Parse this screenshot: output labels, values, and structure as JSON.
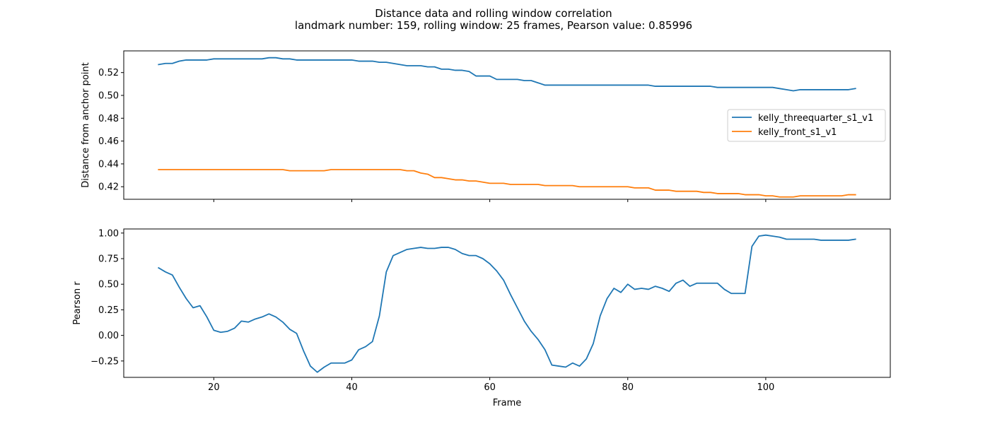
{
  "figure": {
    "title_line1": "Distance data and rolling window correlation",
    "title_line2": "landmark number: 159, rolling window: 25 frames, Pearson value: 0.85996"
  },
  "colors": {
    "series1": "#1f77b4",
    "series2": "#ff7f0e"
  },
  "chart_data": [
    {
      "type": "line",
      "title": "",
      "xlabel": "",
      "ylabel": "Distance from anchor point",
      "xlim": [
        6.95,
        118.05
      ],
      "ylim": [
        0.409,
        0.539
      ],
      "xticks": [
        20,
        40,
        60,
        80,
        100
      ],
      "show_xtick_labels": false,
      "yticks": [
        0.42,
        0.44,
        0.46,
        0.48,
        0.5,
        0.52
      ],
      "ytick_labels": [
        "0.42",
        "0.44",
        "0.46",
        "0.48",
        "0.50",
        "0.52"
      ],
      "grid": false,
      "legend": "center-right",
      "x": [
        12,
        13,
        14,
        15,
        16,
        17,
        18,
        19,
        20,
        21,
        22,
        23,
        24,
        25,
        26,
        27,
        28,
        29,
        30,
        31,
        32,
        33,
        34,
        35,
        36,
        37,
        38,
        39,
        40,
        41,
        42,
        43,
        44,
        45,
        46,
        47,
        48,
        49,
        50,
        51,
        52,
        53,
        54,
        55,
        56,
        57,
        58,
        59,
        60,
        61,
        62,
        63,
        64,
        65,
        66,
        67,
        68,
        69,
        70,
        71,
        72,
        73,
        74,
        75,
        76,
        77,
        78,
        79,
        80,
        81,
        82,
        83,
        84,
        85,
        86,
        87,
        88,
        89,
        90,
        91,
        92,
        93,
        94,
        95,
        96,
        97,
        98,
        99,
        100,
        101,
        102,
        103,
        104,
        105,
        106,
        107,
        108,
        109,
        110,
        111,
        112,
        113
      ],
      "series": [
        {
          "name": "kelly_threequarter_s1_v1",
          "values": [
            0.527,
            0.528,
            0.528,
            0.53,
            0.531,
            0.531,
            0.531,
            0.531,
            0.532,
            0.532,
            0.532,
            0.532,
            0.532,
            0.532,
            0.532,
            0.532,
            0.533,
            0.533,
            0.532,
            0.532,
            0.531,
            0.531,
            0.531,
            0.531,
            0.531,
            0.531,
            0.531,
            0.531,
            0.531,
            0.53,
            0.53,
            0.53,
            0.529,
            0.529,
            0.528,
            0.527,
            0.526,
            0.526,
            0.526,
            0.525,
            0.525,
            0.523,
            0.523,
            0.522,
            0.522,
            0.521,
            0.517,
            0.517,
            0.517,
            0.514,
            0.514,
            0.514,
            0.514,
            0.513,
            0.513,
            0.511,
            0.509,
            0.509,
            0.509,
            0.509,
            0.509,
            0.509,
            0.509,
            0.509,
            0.509,
            0.509,
            0.509,
            0.509,
            0.509,
            0.509,
            0.509,
            0.509,
            0.508,
            0.508,
            0.508,
            0.508,
            0.508,
            0.508,
            0.508,
            0.508,
            0.508,
            0.507,
            0.507,
            0.507,
            0.507,
            0.507,
            0.507,
            0.507,
            0.507,
            0.507,
            0.506,
            0.505,
            0.504,
            0.505,
            0.505,
            0.505,
            0.505,
            0.505,
            0.505,
            0.505,
            0.505,
            0.506
          ]
        },
        {
          "name": "kelly_front_s1_v1",
          "values": [
            0.435,
            0.435,
            0.435,
            0.435,
            0.435,
            0.435,
            0.435,
            0.435,
            0.435,
            0.435,
            0.435,
            0.435,
            0.435,
            0.435,
            0.435,
            0.435,
            0.435,
            0.435,
            0.435,
            0.434,
            0.434,
            0.434,
            0.434,
            0.434,
            0.434,
            0.435,
            0.435,
            0.435,
            0.435,
            0.435,
            0.435,
            0.435,
            0.435,
            0.435,
            0.435,
            0.435,
            0.434,
            0.434,
            0.432,
            0.431,
            0.428,
            0.428,
            0.427,
            0.426,
            0.426,
            0.425,
            0.425,
            0.424,
            0.423,
            0.423,
            0.423,
            0.422,
            0.422,
            0.422,
            0.422,
            0.422,
            0.421,
            0.421,
            0.421,
            0.421,
            0.421,
            0.42,
            0.42,
            0.42,
            0.42,
            0.42,
            0.42,
            0.42,
            0.42,
            0.419,
            0.419,
            0.419,
            0.417,
            0.417,
            0.417,
            0.416,
            0.416,
            0.416,
            0.416,
            0.415,
            0.415,
            0.414,
            0.414,
            0.414,
            0.414,
            0.413,
            0.413,
            0.413,
            0.412,
            0.412,
            0.411,
            0.411,
            0.411,
            0.412,
            0.412,
            0.412,
            0.412,
            0.412,
            0.412,
            0.412,
            0.413,
            0.413
          ]
        }
      ]
    },
    {
      "type": "line",
      "title": "",
      "xlabel": "Frame",
      "ylabel": "Pearson r",
      "xlim": [
        6.95,
        118.05
      ],
      "ylim": [
        -0.41,
        1.04
      ],
      "xticks": [
        20,
        40,
        60,
        80,
        100
      ],
      "xtick_labels": [
        "20",
        "40",
        "60",
        "80",
        "100"
      ],
      "show_xtick_labels": true,
      "yticks": [
        -0.25,
        0.0,
        0.25,
        0.5,
        0.75,
        1.0
      ],
      "ytick_labels": [
        "−0.25",
        "0.00",
        "0.25",
        "0.50",
        "0.75",
        "1.00"
      ],
      "grid": false,
      "x": [
        12,
        13,
        14,
        15,
        16,
        17,
        18,
        19,
        20,
        21,
        22,
        23,
        24,
        25,
        26,
        27,
        28,
        29,
        30,
        31,
        32,
        33,
        34,
        35,
        36,
        37,
        38,
        39,
        40,
        41,
        42,
        43,
        44,
        45,
        46,
        47,
        48,
        49,
        50,
        51,
        52,
        53,
        54,
        55,
        56,
        57,
        58,
        59,
        60,
        61,
        62,
        63,
        64,
        65,
        66,
        67,
        68,
        69,
        70,
        71,
        72,
        73,
        74,
        75,
        76,
        77,
        78,
        79,
        80,
        81,
        82,
        83,
        84,
        85,
        86,
        87,
        88,
        89,
        90,
        91,
        92,
        93,
        94,
        95,
        96,
        97,
        98,
        99,
        100,
        101,
        102,
        103,
        104,
        105,
        106,
        107,
        108,
        109,
        110,
        111,
        112,
        113
      ],
      "series": [
        {
          "values": [
            0.66,
            0.62,
            0.59,
            0.47,
            0.36,
            0.27,
            0.29,
            0.18,
            0.05,
            0.03,
            0.04,
            0.07,
            0.14,
            0.13,
            0.16,
            0.18,
            0.21,
            0.18,
            0.13,
            0.06,
            0.02,
            -0.15,
            -0.3,
            -0.36,
            -0.31,
            -0.27,
            -0.27,
            -0.27,
            -0.24,
            -0.14,
            -0.11,
            -0.06,
            0.19,
            0.62,
            0.78,
            0.81,
            0.84,
            0.85,
            0.86,
            0.85,
            0.85,
            0.86,
            0.86,
            0.84,
            0.8,
            0.78,
            0.78,
            0.75,
            0.7,
            0.63,
            0.54,
            0.4,
            0.27,
            0.14,
            0.04,
            -0.04,
            -0.14,
            -0.29,
            -0.3,
            -0.31,
            -0.27,
            -0.3,
            -0.23,
            -0.08,
            0.19,
            0.36,
            0.46,
            0.42,
            0.5,
            0.45,
            0.46,
            0.45,
            0.48,
            0.46,
            0.43,
            0.51,
            0.54,
            0.48,
            0.51,
            0.51,
            0.51,
            0.51,
            0.45,
            0.41,
            0.41,
            0.41,
            0.87,
            0.97,
            0.98,
            0.97,
            0.96,
            0.94,
            0.94,
            0.94,
            0.94,
            0.94,
            0.93,
            0.93,
            0.93,
            0.93,
            0.93,
            0.94
          ]
        }
      ]
    }
  ]
}
